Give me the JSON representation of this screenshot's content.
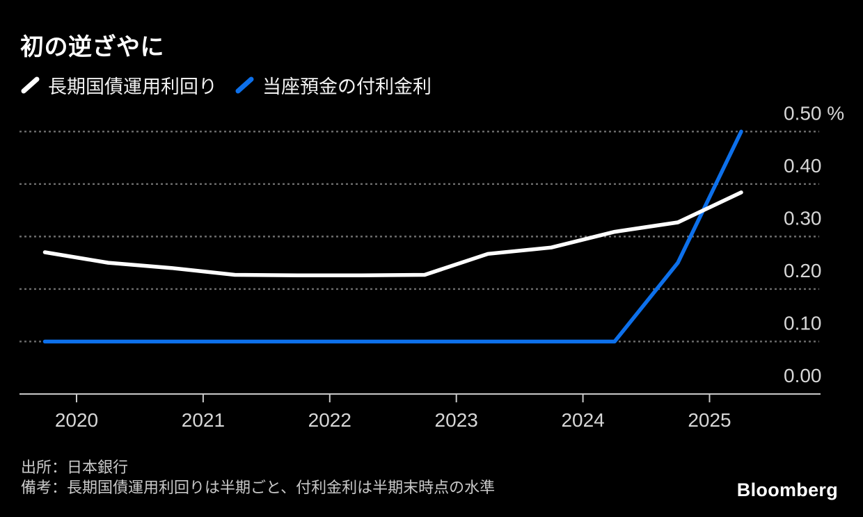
{
  "header": {
    "title": "初の逆ざやに"
  },
  "legend": {
    "items": [
      {
        "label": "長期国債運用利回り",
        "color": "#ffffff"
      },
      {
        "label": "当座預金の付利金利",
        "color": "#0d70eb"
      }
    ]
  },
  "chart_data": {
    "type": "line",
    "title": "初の逆ざやに",
    "x": [
      2019.75,
      2020.25,
      2020.75,
      2021.25,
      2021.75,
      2022.25,
      2022.75,
      2023.25,
      2023.75,
      2024.25,
      2024.75,
      2025.25
    ],
    "x_period_labels": [
      "2019/9",
      "2020/3",
      "2020/9",
      "2021/3",
      "2021/9",
      "2022/3",
      "2022/9",
      "2023/3",
      "2023/9",
      "2024/3",
      "2024/9",
      "2025/3"
    ],
    "series": [
      {
        "name": "長期国債運用利回り",
        "color": "#ffffff",
        "values": [
          0.27,
          0.25,
          0.24,
          0.227,
          0.226,
          0.226,
          0.227,
          0.267,
          0.279,
          0.309,
          0.327,
          0.384
        ]
      },
      {
        "name": "当座預金の付利金利",
        "color": "#0d70eb",
        "values": [
          0.1,
          0.1,
          0.1,
          0.1,
          0.1,
          0.1,
          0.1,
          0.1,
          0.1,
          0.1,
          0.25,
          0.5
        ]
      }
    ],
    "xticks": [
      2020,
      2021,
      2022,
      2023,
      2024,
      2025
    ],
    "xtick_labels": [
      "2020",
      "2021",
      "2022",
      "2023",
      "2024",
      "2025"
    ],
    "yticks": [
      0.0,
      0.1,
      0.2,
      0.3,
      0.4,
      0.5
    ],
    "ytick_labels": [
      "0.00",
      "0.10",
      "0.20",
      "0.30",
      "0.40",
      "0.50 %"
    ],
    "ylim": [
      0.0,
      0.5
    ],
    "xlim": [
      2019.55,
      2025.85
    ],
    "unit": "%",
    "grid": "dotted-horizontal",
    "legend_position": "top-left",
    "colors": {
      "background": "#000000",
      "grid": "#6e6e6e",
      "axis": "#c9c9c9",
      "tick_label": "#d7d7d7"
    }
  },
  "footer": {
    "source": "出所：日本銀行",
    "note": "備考：長期国債運用利回りは半期ごと、付利金利は半期末時点の水準",
    "logo": "Bloomberg"
  }
}
